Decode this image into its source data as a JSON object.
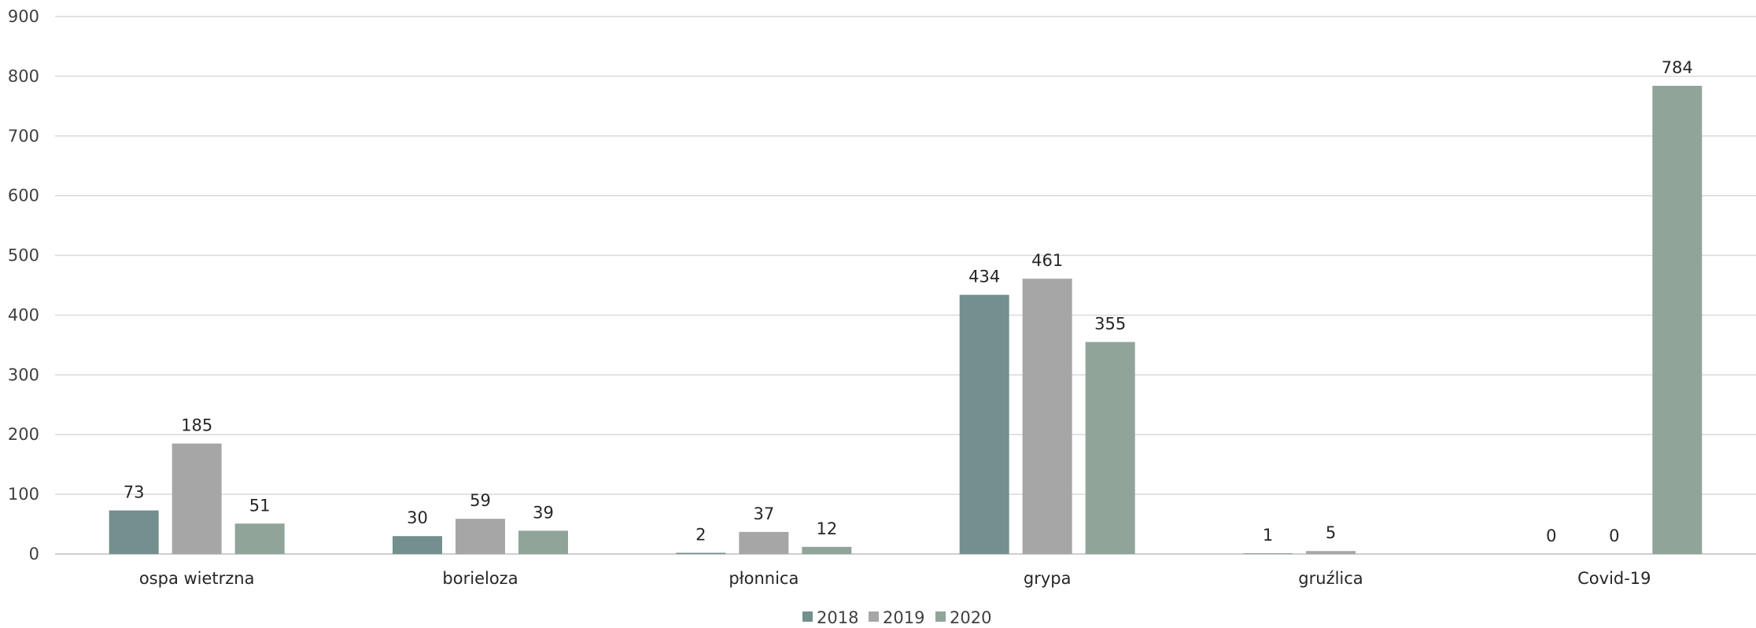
{
  "chart_data": {
    "type": "bar",
    "title": "",
    "xlabel": "",
    "ylabel": "",
    "categories": [
      "ospa wietrzna",
      "borieloza",
      "płonnica",
      "grypa",
      "gruźlica",
      "Covid-19"
    ],
    "series": [
      {
        "name": "2018",
        "color": "#738f8e",
        "values": [
          73,
          30,
          2,
          434,
          1,
          0
        ],
        "labels": [
          "73",
          "30",
          "2",
          "434",
          "1",
          "0"
        ]
      },
      {
        "name": "2019",
        "color": "#a6a6a6",
        "values": [
          185,
          59,
          37,
          461,
          5,
          0
        ],
        "labels": [
          "185",
          "59",
          "37",
          "461",
          "5",
          "0"
        ]
      },
      {
        "name": "2020",
        "color": "#91a49a",
        "values": [
          51,
          39,
          12,
          355,
          null,
          784
        ],
        "labels": [
          "51",
          "39",
          "12",
          "355",
          "",
          "784"
        ]
      }
    ],
    "ylim": [
      0,
      900
    ],
    "yticks": [
      0,
      100,
      200,
      300,
      400,
      500,
      600,
      700,
      800,
      900
    ],
    "grid": true,
    "legend_position": "bottom"
  }
}
